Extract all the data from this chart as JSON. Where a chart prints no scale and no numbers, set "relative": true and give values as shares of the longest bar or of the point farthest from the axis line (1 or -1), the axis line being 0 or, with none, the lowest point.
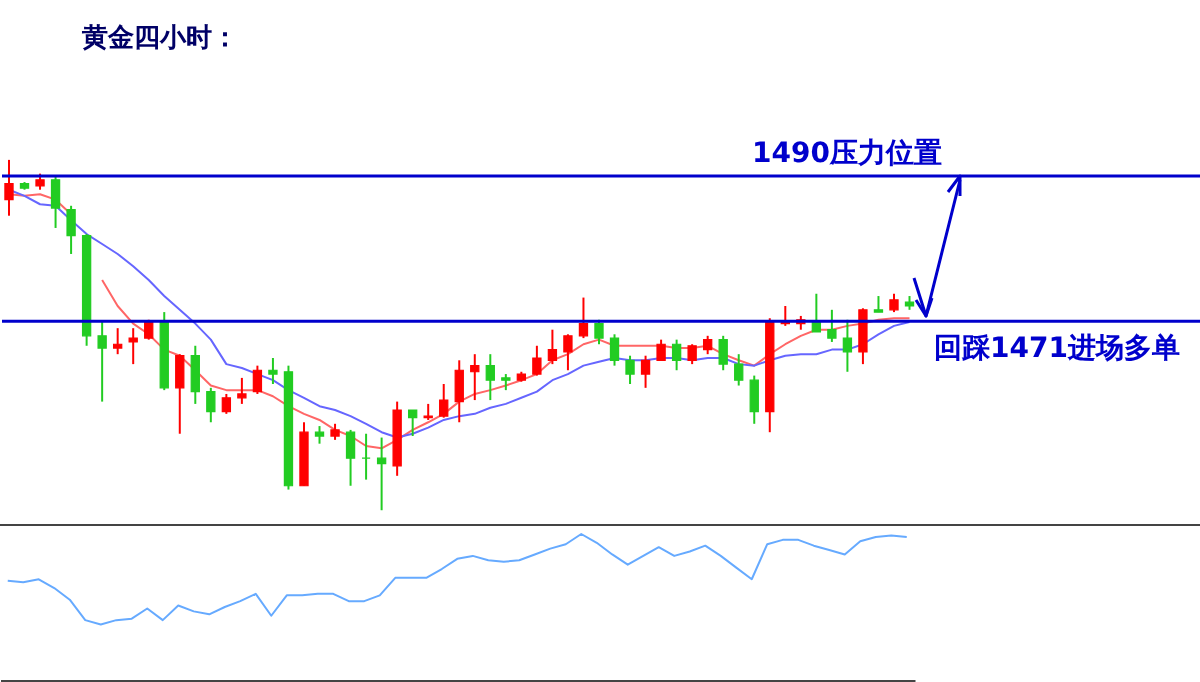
{
  "chart_data": [
    {
      "type": "candlestick",
      "title": "黄金四小时：",
      "tick_labels": false,
      "categories": [
        null,
        null,
        null,
        null,
        null,
        null,
        null,
        null,
        null,
        null,
        null,
        null,
        null,
        null,
        null,
        null,
        null,
        null,
        null,
        null,
        null,
        null,
        null,
        null,
        null,
        null,
        null,
        null,
        null,
        null,
        null,
        null,
        null,
        null,
        null,
        null,
        null,
        null,
        null,
        null,
        null,
        null,
        null,
        null,
        null,
        null,
        null,
        null,
        null,
        null,
        null,
        null,
        null,
        null,
        null,
        null,
        null,
        null,
        null
      ],
      "ylim": [
        1444.5,
        1513
      ],
      "ohlc": [
        [
          1486.9,
          1492.1,
          1484.8,
          1489.0
        ],
        [
          1489.0,
          1489.2,
          1488.2,
          1488.4
        ],
        [
          1488.7,
          1490.3,
          1488.2,
          1489.5
        ],
        [
          1489.5,
          1490.0,
          1483.2,
          1485.8
        ],
        [
          1485.6,
          1486.1,
          1479.8,
          1482.2
        ],
        [
          1482.2,
          1482.4,
          1467.8,
          1469.1
        ],
        [
          1469.1,
          1470.9,
          1460.5,
          1467.5
        ],
        [
          1467.5,
          1470.1,
          1466.7,
          1468.0
        ],
        [
          1468.3,
          1470.1,
          1465.4,
          1468.8
        ],
        [
          1468.8,
          1471.2,
          1468.6,
          1470.9
        ],
        [
          1470.9,
          1472.2,
          1462.0,
          1462.3
        ],
        [
          1462.3,
          1466.7,
          1456.3,
          1466.5
        ],
        [
          1466.5,
          1467.8,
          1460.2,
          1461.8
        ],
        [
          1461.8,
          1462.3,
          1457.8,
          1459.2
        ],
        [
          1459.2,
          1461.5,
          1458.9,
          1461.0
        ],
        [
          1461.0,
          1463.6,
          1460.2,
          1461.5
        ],
        [
          1461.8,
          1465.2,
          1461.5,
          1464.6
        ],
        [
          1464.6,
          1466.2,
          1462.8,
          1464.1
        ],
        [
          1464.4,
          1465.2,
          1449.0,
          1449.5
        ],
        [
          1449.5,
          1457.8,
          1449.5,
          1456.5
        ],
        [
          1456.5,
          1457.3,
          1455.0,
          1456.0
        ],
        [
          1456.0,
          1457.6,
          1455.5,
          1456.8
        ],
        [
          1456.5,
          1456.8,
          1449.5,
          1453.1
        ],
        [
          1453.1,
          1456.3,
          1450.3,
          1453.1
        ],
        [
          1453.1,
          1455.8,
          1446.3,
          1452.4
        ],
        [
          1452.1,
          1460.5,
          1450.8,
          1459.4
        ],
        [
          1459.4,
          1459.4,
          1456.0,
          1458.4
        ],
        [
          1458.4,
          1460.2,
          1458.1,
          1458.6
        ],
        [
          1458.6,
          1462.8,
          1458.4,
          1460.7
        ],
        [
          1460.5,
          1465.9,
          1457.8,
          1464.6
        ],
        [
          1464.4,
          1466.7,
          1460.7,
          1465.2
        ],
        [
          1465.2,
          1466.7,
          1460.7,
          1463.3
        ],
        [
          1463.6,
          1464.1,
          1462.0,
          1463.3
        ],
        [
          1463.3,
          1464.4,
          1463.1,
          1464.1
        ],
        [
          1464.1,
          1467.8,
          1463.9,
          1466.2
        ],
        [
          1465.9,
          1469.9,
          1465.4,
          1467.3
        ],
        [
          1467.0,
          1469.3,
          1464.6,
          1469.1
        ],
        [
          1469.1,
          1474.1,
          1468.8,
          1470.7
        ],
        [
          1470.7,
          1471.2,
          1468.0,
          1468.8
        ],
        [
          1468.8,
          1469.3,
          1465.2,
          1465.9
        ],
        [
          1465.9,
          1466.5,
          1462.8,
          1464.1
        ],
        [
          1464.1,
          1466.5,
          1462.3,
          1465.9
        ],
        [
          1465.9,
          1468.6,
          1465.9,
          1468.0
        ],
        [
          1468.0,
          1468.6,
          1464.6,
          1465.9
        ],
        [
          1465.9,
          1468.0,
          1465.4,
          1467.8
        ],
        [
          1467.3,
          1469.1,
          1466.7,
          1468.6
        ],
        [
          1468.6,
          1469.1,
          1464.6,
          1465.4
        ],
        [
          1465.4,
          1466.7,
          1462.6,
          1463.3
        ],
        [
          1463.3,
          1463.9,
          1457.6,
          1459.2
        ],
        [
          1459.2,
          1471.4,
          1456.5,
          1470.9
        ],
        [
          1470.7,
          1473.0,
          1470.4,
          1470.9
        ],
        [
          1470.7,
          1471.7,
          1469.9,
          1471.2
        ],
        [
          1470.9,
          1474.6,
          1469.6,
          1469.6
        ],
        [
          1469.9,
          1472.5,
          1468.3,
          1468.8
        ],
        [
          1468.8,
          1471.2,
          1464.4,
          1467.0
        ],
        [
          1467.0,
          1472.7,
          1465.4,
          1472.5
        ],
        [
          1472.5,
          1474.3,
          1472.2,
          1472.2
        ],
        [
          1472.5,
          1474.6,
          1472.2,
          1473.8
        ],
        [
          1473.5,
          1474.3,
          1472.5,
          1473.0
        ]
      ],
      "colors": [
        "#ff0000",
        "#22cc22",
        "#ff0000",
        "#22cc22",
        "#22cc22",
        "#22cc22",
        "#22cc22",
        "#ff0000",
        "#ff0000",
        "#ff0000",
        "#22cc22",
        "#ff0000",
        "#22cc22",
        "#22cc22",
        "#ff0000",
        "#ff0000",
        "#ff0000",
        "#22cc22",
        "#22cc22",
        "#ff0000",
        "#22cc22",
        "#ff0000",
        "#22cc22",
        "#22cc22",
        "#22cc22",
        "#ff0000",
        "#22cc22",
        "#ff0000",
        "#ff0000",
        "#ff0000",
        "#ff0000",
        "#22cc22",
        "#22cc22",
        "#ff0000",
        "#ff0000",
        "#ff0000",
        "#ff0000",
        "#ff0000",
        "#22cc22",
        "#22cc22",
        "#22cc22",
        "#ff0000",
        "#ff0000",
        "#22cc22",
        "#ff0000",
        "#ff0000",
        "#22cc22",
        "#22cc22",
        "#22cc22",
        "#ff0000",
        "#ff0000",
        "#ff0000",
        "#22cc22",
        "#22cc22",
        "#22cc22",
        "#ff0000",
        "#22cc22",
        "#ff0000",
        "#22cc22"
      ],
      "series": [
        {
          "type": "line",
          "color": "#ff6666",
          "values": [
            1487.6,
            1487.4,
            1487.6,
            1486.9,
            1485.0,
            null,
            1476.4,
            1473.0,
            1470.7,
            1469.3,
            1467.3,
            1466.5,
            1464.6,
            1462.6,
            1462.0,
            1462.0,
            1462.0,
            1461.2,
            1459.9,
            1458.9,
            1458.1,
            1456.8,
            1456.0,
            1454.7,
            1454.4,
            1455.5,
            1456.8,
            1457.8,
            1458.9,
            1460.5,
            1461.5,
            1462.0,
            1462.6,
            1463.3,
            1464.1,
            1465.9,
            1466.7,
            1468.0,
            1468.6,
            1467.8,
            1467.8,
            1467.8,
            1467.8,
            1467.5,
            1467.5,
            1467.8,
            1466.7,
            1465.9,
            1465.2,
            1466.7,
            1468.0,
            1469.1,
            1469.9,
            1469.9,
            1470.4,
            1470.7,
            1471.2,
            1471.4,
            1471.4
          ]
        },
        {
          "type": "line",
          "color": "#6666ff",
          "values": [
            1488.2,
            1487.4,
            1486.3,
            1486.1,
            1484.2,
            1482.4,
            1481.1,
            1479.8,
            1478.2,
            1476.4,
            1474.3,
            1472.5,
            1470.7,
            1468.6,
            1465.4,
            1464.9,
            1464.1,
            1463.3,
            1462.0,
            1461.0,
            1459.9,
            1459.4,
            1458.6,
            1457.6,
            1456.5,
            1455.8,
            1456.3,
            1457.1,
            1458.1,
            1458.6,
            1458.9,
            1459.7,
            1460.2,
            1461.0,
            1461.8,
            1463.3,
            1464.1,
            1465.2,
            1465.7,
            1466.2,
            1465.9,
            1465.9,
            1466.2,
            1466.2,
            1465.9,
            1466.2,
            1466.2,
            1465.4,
            1465.2,
            1465.9,
            1466.5,
            1466.7,
            1466.7,
            1467.3,
            1467.3,
            1468.0,
            1469.3,
            1470.4,
            1470.9
          ]
        }
      ],
      "ref_lines": [
        {
          "axis": "y",
          "value": 1490,
          "label": "1490压力位置",
          "color": "#0000cc"
        },
        {
          "axis": "y",
          "value": 1471,
          "label": "回踩1471进场多单",
          "color": "#0000cc"
        }
      ]
    },
    {
      "type": "line",
      "relative": true,
      "tick_labels": false,
      "categories": [
        null,
        null,
        null,
        null,
        null,
        null,
        null,
        null,
        null,
        null,
        null,
        null,
        null,
        null,
        null,
        null,
        null,
        null,
        null,
        null,
        null,
        null,
        null,
        null,
        null,
        null,
        null,
        null,
        null,
        null,
        null,
        null,
        null,
        null,
        null,
        null,
        null,
        null,
        null,
        null,
        null,
        null,
        null,
        null,
        null,
        null,
        null,
        null,
        null,
        null,
        null,
        null,
        null,
        null,
        null,
        null,
        null,
        null,
        null
      ],
      "series": [
        {
          "color": "#66aaff",
          "values": [
            0.68,
            0.67,
            0.69,
            0.63,
            0.55,
            0.41,
            0.38,
            0.41,
            0.42,
            0.49,
            0.41,
            0.51,
            0.47,
            0.45,
            0.5,
            0.54,
            0.59,
            0.44,
            0.58,
            0.58,
            0.59,
            0.59,
            0.54,
            0.54,
            0.58,
            0.7,
            0.7,
            0.7,
            0.76,
            0.83,
            0.85,
            0.82,
            0.81,
            0.82,
            0.86,
            0.9,
            0.93,
            1,
            0.94,
            0.86,
            0.79,
            0.85,
            0.91,
            0.85,
            0.88,
            0.92,
            0.85,
            0.77,
            0.69,
            0.93,
            0.96,
            0.96,
            0.92,
            0.89,
            0.86,
            0.95,
            0.98,
            0.99,
            0.98
          ]
        }
      ]
    }
  ]
}
